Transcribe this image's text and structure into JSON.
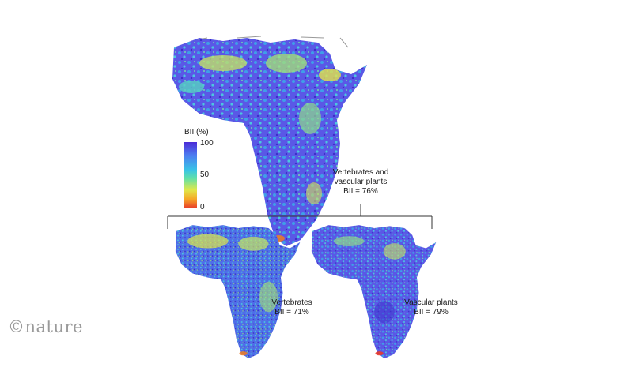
{
  "legend": {
    "title": "BII (%)",
    "ticks": [
      "100",
      "50",
      "0"
    ]
  },
  "maps": {
    "main": {
      "line1": "Vertebrates and",
      "line2": "vascular plants",
      "line3": "BII = 76%"
    },
    "vertebrates": {
      "line1": "Vertebrates",
      "line2": "BII = 71%"
    },
    "plants": {
      "line1": "Vascular plants",
      "line2": "BII = 79%"
    }
  },
  "brand": "©nature",
  "colors": {
    "high": "#4b2bd6",
    "mid": "#39c4e6",
    "low_mid": "#dfe84a",
    "low": "#e8392a"
  }
}
